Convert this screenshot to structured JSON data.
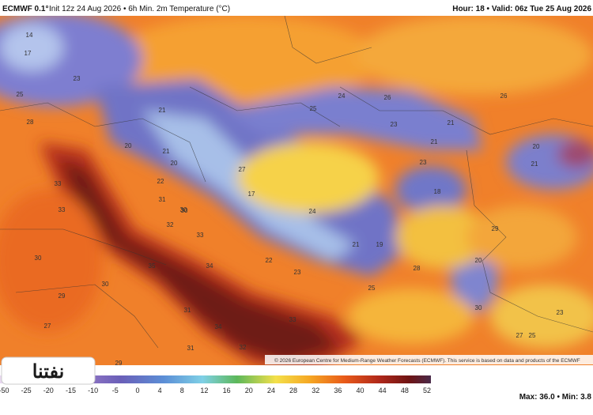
{
  "header": {
    "model": "ECMWF 0.1°",
    "init": "Init 12z 24 Aug 2026 • 6h Min. 2m Temperature (°C)",
    "valid": "Hour: 18 • Valid: 06z Tue 25 Aug 2026"
  },
  "map_labels": [
    "14",
    "17",
    "23",
    "28",
    "25",
    "33",
    "33",
    "30",
    "30",
    "29",
    "27",
    "30",
    "29",
    "21",
    "20",
    "21",
    "20",
    "22",
    "31",
    "30",
    "32",
    "33",
    "35",
    "34",
    "31",
    "34",
    "32",
    "31",
    "33",
    "24",
    "25",
    "27",
    "26",
    "23",
    "21",
    "21",
    "18",
    "23",
    "24",
    "17",
    "22",
    "19",
    "21",
    "23",
    "28",
    "20",
    "25",
    "26",
    "29",
    "30",
    "27",
    "23",
    "25",
    "21",
    "20"
  ],
  "footer": {
    "copyright": "© 2026 European Centre for Medium-Range Weather Forecasts (ECMWF). This service is based on data and products of the ECMWF",
    "stats": "Max: 36.0 • Min: 3.8",
    "logo": "نفتنا"
  },
  "colorbar": {
    "ticks": [
      -50,
      -25,
      -20,
      -15,
      -10,
      -5,
      0,
      4,
      8,
      12,
      16,
      20,
      24,
      28,
      32,
      36,
      40,
      44,
      48,
      52
    ]
  }
}
